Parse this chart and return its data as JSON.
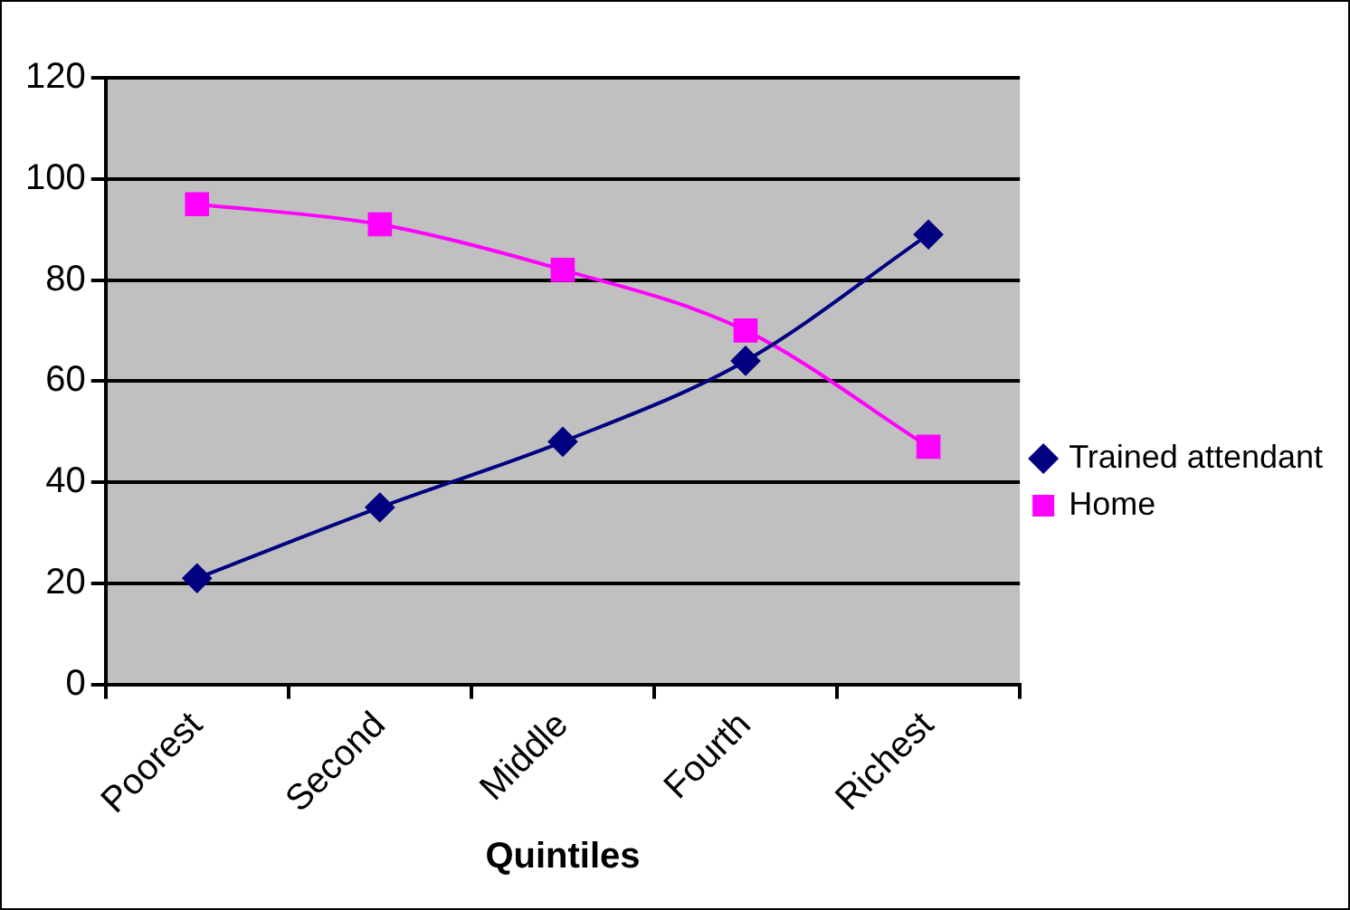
{
  "chart_data": {
    "type": "line",
    "xlabel": "Quintiles",
    "categories": [
      "Poorest",
      "Second",
      "Middle",
      "Fourth",
      "Richest"
    ],
    "series": [
      {
        "name": "Trained attendant",
        "color": "#000080",
        "values": [
          21,
          35,
          48,
          64,
          89
        ],
        "marker": "diamond"
      },
      {
        "name": "Home",
        "color": "#ff00ff",
        "values": [
          95,
          91,
          82,
          70,
          47
        ],
        "marker": "square"
      }
    ],
    "ylim": [
      0,
      120
    ],
    "yticks": [
      0,
      20,
      40,
      60,
      80,
      100,
      120
    ],
    "grid": "y",
    "legend": "right"
  }
}
